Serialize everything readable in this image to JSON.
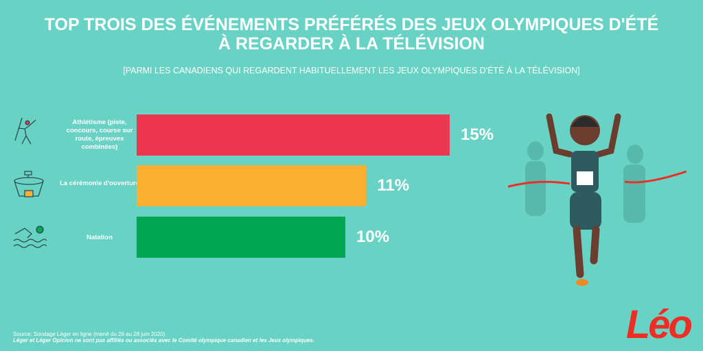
{
  "header": {
    "title_line1": "TOP TROIS DES ÉVÉNEMENTS PRÉFÉRÉS DES JEUX OLYMPIQUES D'ÉTÉ",
    "title_line2": "À REGARDER À LA TÉLÉVISION",
    "subtitle": "[PARMI LES CANADIENS QUI REGARDENT HABITUELLEMENT LES JEUX OLYMPIQUES D'ÉTÉ À LA TÉLÉVISION]"
  },
  "chart_data": {
    "type": "bar",
    "orientation": "horizontal",
    "title": "TOP TROIS DES ÉVÉNEMENTS PRÉFÉRÉS DES JEUX OLYMPIQUES D'ÉTÉ À REGARDER À LA TÉLÉVISION",
    "categories": [
      "Athlétisme (piste, concours, course sur route, épreuves combinées)",
      "La cérémonie d'ouverture",
      "Natation"
    ],
    "values": [
      15,
      11,
      10
    ],
    "labels": [
      "15%",
      "11%",
      "10%"
    ],
    "colors": [
      "#ef3651",
      "#fbb034",
      "#00a651"
    ],
    "grid": false,
    "icons": [
      "javelin-thrower-icon",
      "stadium-icon",
      "swimmer-icon"
    ]
  },
  "footer": {
    "source": "Source: Sondage Léger en ligne (mené du 26 au 28 juin 2020)",
    "disclaimer": "Léger et Léger Opinion ne sont pas affiliés ou associés avec le Comité olympique canadien et les Jeux olympiques."
  },
  "logo": "Léo"
}
